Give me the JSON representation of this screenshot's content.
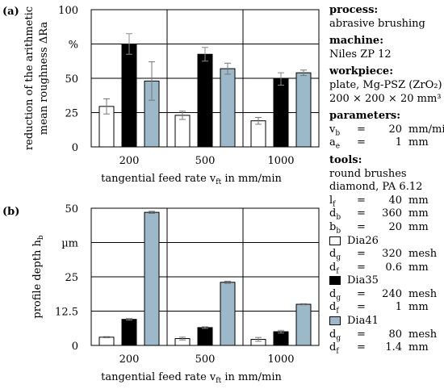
{
  "chart_data": [
    {
      "panel": "(a)",
      "type": "bar",
      "categories": [
        "200",
        "500",
        "1000"
      ],
      "series": [
        {
          "values": [
            29.5,
            23.0,
            19.0
          ],
          "errors": [
            5.5,
            3.0,
            2.5
          ],
          "color": "#ffffff"
        },
        {
          "values": [
            75.0,
            67.5,
            49.5
          ],
          "errors": [
            7.5,
            5.0,
            4.5
          ],
          "color": "#000000"
        },
        {
          "values": [
            48.0,
            57.0,
            54.0
          ],
          "errors": [
            14.0,
            4.0,
            2.0
          ],
          "color": "#9bb9c8"
        }
      ],
      "ylim": [
        0,
        100
      ],
      "yticks": [
        "0",
        "25",
        "50",
        "%",
        "100"
      ],
      "xlabel": "tangential feed rate v_ft in mm/min",
      "ylabel_lines": [
        "reduction of the arithmetic",
        "mean roughness ΔRa"
      ],
      "grid": true
    },
    {
      "panel": "(b)",
      "type": "bar",
      "categories": [
        "200",
        "500",
        "1000"
      ],
      "series": [
        {
          "values": [
            3.0,
            2.5,
            2.2
          ],
          "errors": [
            0.2,
            0.5,
            0.7
          ],
          "color": "#ffffff"
        },
        {
          "values": [
            9.5,
            6.5,
            5.0
          ],
          "errors": [
            0.3,
            0.3,
            0.5
          ],
          "color": "#000000"
        },
        {
          "values": [
            48.5,
            23.0,
            15.0
          ],
          "errors": [
            0.4,
            0.4,
            0.2
          ],
          "color": "#9bb9c8"
        }
      ],
      "ylim": [
        0,
        50
      ],
      "yticks": [
        "0",
        "12.5",
        "25",
        "µm",
        "50"
      ],
      "xlabel": "tangential feed rate v_ft in mm/min",
      "ylabel": "profile depth h_b",
      "grid": true
    }
  ],
  "info": {
    "process_heading": "process:",
    "process_value": "abrasive brushing",
    "machine_heading": "machine:",
    "machine_value": "Niles ZP 12",
    "workpiece_heading": "workpiece:",
    "workpiece_line1": "plate, Mg-PSZ (ZrO₂)",
    "workpiece_line2": "200 × 200 × 20 mm³",
    "parameters_heading": "parameters:",
    "param_vb": {
      "sym": "v",
      "sub": "b",
      "eq": "=",
      "val": "20",
      "unit": "mm/min"
    },
    "param_ae": {
      "sym": "a",
      "sub": "e",
      "eq": "=",
      "val": "1",
      "unit": "mm"
    },
    "tools_heading": "tools:",
    "tools_line1": "round brushes",
    "tools_line2": "diamond, PA 6.12",
    "tool_lf": {
      "sym": "l",
      "sub": "f",
      "eq": "=",
      "val": "40",
      "unit": "mm"
    },
    "tool_db": {
      "sym": "d",
      "sub": "b",
      "eq": "=",
      "val": "360",
      "unit": "mm"
    },
    "tool_bb": {
      "sym": "b",
      "sub": "b",
      "eq": "=",
      "val": "20",
      "unit": "mm"
    },
    "legend": [
      {
        "name": "Dia26",
        "color": "#ffffff",
        "dg": {
          "sym": "d",
          "sub": "g",
          "eq": "=",
          "val": "320",
          "unit": "mesh"
        },
        "df": {
          "sym": "d",
          "sub": "f",
          "eq": "=",
          "val": "0.6",
          "unit": "mm"
        }
      },
      {
        "name": "Dia35",
        "color": "#000000",
        "dg": {
          "sym": "d",
          "sub": "g",
          "eq": "=",
          "val": "240",
          "unit": "mesh"
        },
        "df": {
          "sym": "d",
          "sub": "f",
          "eq": "=",
          "val": "1",
          "unit": "mm"
        }
      },
      {
        "name": "Dia41",
        "color": "#9bb9c8",
        "dg": {
          "sym": "d",
          "sub": "g",
          "eq": "=",
          "val": "80",
          "unit": "mesh"
        },
        "df": {
          "sym": "d",
          "sub": "f",
          "eq": "=",
          "val": "1.4",
          "unit": "mm"
        }
      }
    ]
  }
}
